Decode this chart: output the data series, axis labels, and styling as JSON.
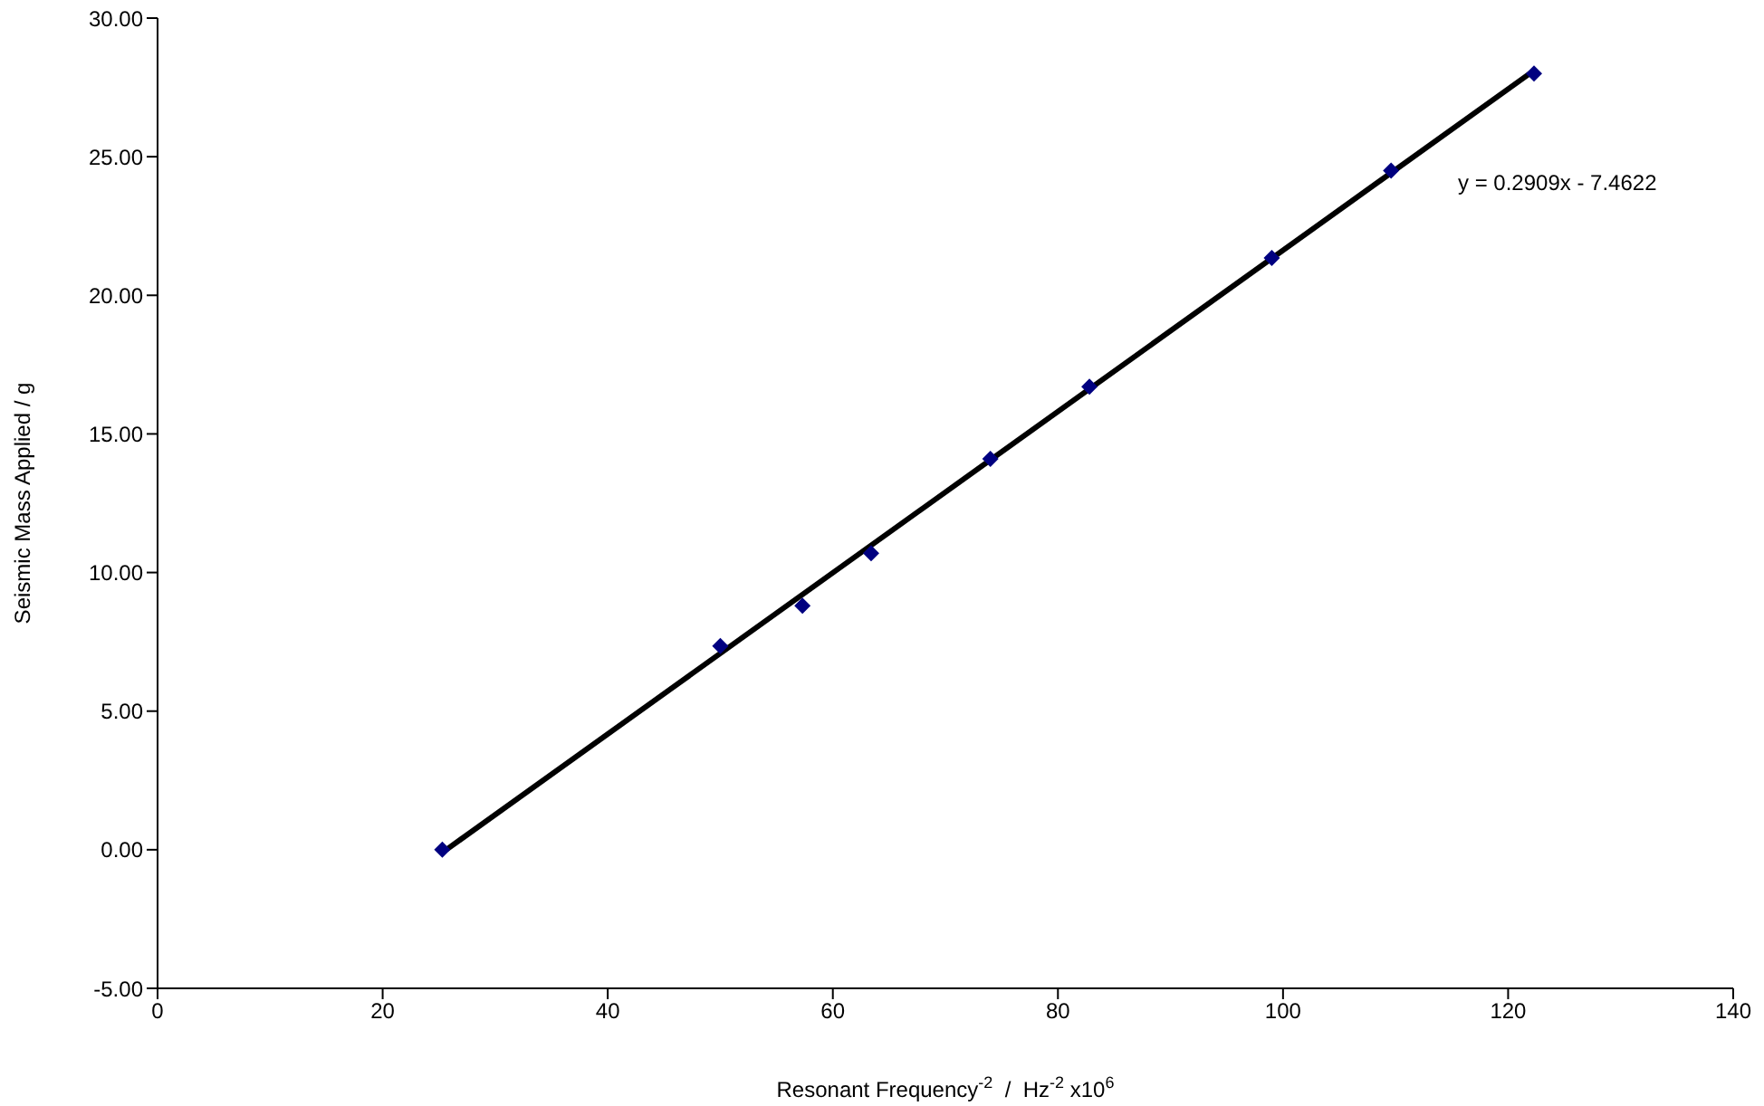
{
  "chart_data": {
    "type": "scatter",
    "xlabel": "Resonant Frequency$^{-2}$  /  Hz$^{-2}$ x10$^{6}$",
    "ylabel": "Seismic Mass Applied / g",
    "annotations": [
      "y = 0.2909x - 7.4622"
    ],
    "xlim": [
      0,
      140
    ],
    "xticks": [
      0,
      20,
      40,
      60,
      80,
      100,
      120,
      140
    ],
    "ylim": [
      -5,
      30
    ],
    "yticks": [
      {
        "value": -5,
        "label": "-5.00"
      },
      {
        "value": 0,
        "label": "0.00"
      },
      {
        "value": 5,
        "label": "5.00"
      },
      {
        "value": 10,
        "label": "10.00"
      },
      {
        "value": 15,
        "label": "15.00"
      },
      {
        "value": 20,
        "label": "20.00"
      },
      {
        "value": 25,
        "label": "25.00"
      },
      {
        "value": 30,
        "label": "30.00"
      }
    ],
    "grid": false,
    "legend": false,
    "series": [
      {
        "color": "#000080",
        "marker": "diamond",
        "x": [
          25.3,
          50,
          57.3,
          63.4,
          74,
          82.8,
          99,
          109.6,
          122.3
        ],
        "values": [
          0,
          7.35,
          8.8,
          10.7,
          14.1,
          16.7,
          21.35,
          24.5,
          28.0
        ]
      },
      {
        "type": "line",
        "color": "#000000",
        "marker": "none",
        "line_style": "solid",
        "x": [
          25.65,
          122.3
        ],
        "values": [
          0,
          28.11
        ]
      }
    ]
  }
}
